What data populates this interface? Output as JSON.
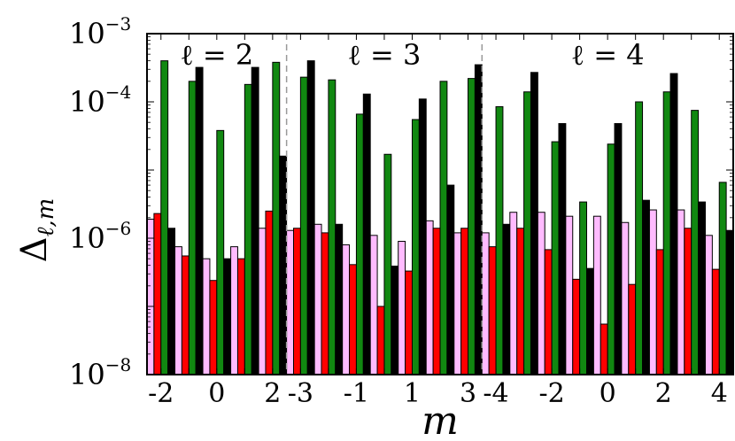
{
  "chart_data": {
    "type": "bar",
    "yscale": "log",
    "ylim": [
      1e-08,
      0.001
    ],
    "ylabel": "Δℓ,m",
    "xlabel": "m",
    "yticks": [
      {
        "value": 1e-08,
        "base": "10",
        "exp": "−8"
      },
      {
        "value": 1e-06,
        "base": "10",
        "exp": "−6"
      },
      {
        "value": 0.0001,
        "base": "10",
        "exp": "−4"
      },
      {
        "value": 0.001,
        "base": "10",
        "exp": "−3"
      }
    ],
    "legend": "none",
    "grid": false,
    "colors": {
      "s1": "#ffbbff",
      "s2": "#ff0000",
      "s3": "#118811",
      "s4": "#000000"
    },
    "panels": [
      {
        "label": "ℓ = 2",
        "m": [
          -2,
          -1,
          0,
          1,
          2
        ],
        "tick_labels": [
          "-2",
          "",
          "0",
          "",
          "2"
        ],
        "series": {
          "s1": [
            1.9e-06,
            7.5e-07,
            5e-07,
            7.5e-07,
            1.4e-06
          ],
          "s2": [
            2.3e-06,
            5.5e-07,
            2.4e-07,
            5e-07,
            2.5e-06
          ],
          "s3": [
            0.0004,
            0.0002,
            3.8e-05,
            0.00018,
            0.00038
          ],
          "s4": [
            1.4e-06,
            0.00032,
            5e-07,
            0.00032,
            1.6e-05
          ]
        }
      },
      {
        "label": "ℓ = 3",
        "m": [
          -3,
          -2,
          -1,
          0,
          1,
          2,
          3
        ],
        "tick_labels": [
          "-3",
          "",
          "-1",
          "",
          "1",
          "",
          "3"
        ],
        "series": {
          "s1": [
            1.3e-06,
            1.6e-06,
            8e-07,
            1.1e-06,
            9e-07,
            1.8e-06,
            1.2e-06
          ],
          "s2": [
            1.4e-06,
            1.2e-06,
            4.1e-07,
            1e-07,
            3.3e-07,
            1.4e-06,
            1.4e-06
          ],
          "s3": [
            0.00023,
            0.00021,
            6.6e-05,
            1.7e-05,
            5.5e-05,
            0.0002,
            0.00022
          ],
          "s4": [
            0.0004,
            1.6e-06,
            0.00013,
            3.9e-07,
            0.00011,
            6e-06,
            0.00035
          ]
        }
      },
      {
        "label": "ℓ = 4",
        "m": [
          -4,
          -3,
          -2,
          -1,
          0,
          1,
          2,
          3,
          4
        ],
        "tick_labels": [
          "-4",
          "",
          "-2",
          "",
          "0",
          "",
          "2",
          "",
          "4"
        ],
        "series": {
          "s1": [
            1.2e-06,
            2.4e-06,
            2.4e-06,
            2.1e-06,
            2.1e-06,
            1.7e-06,
            2.6e-06,
            2.6e-06,
            1.1e-06
          ],
          "s2": [
            7.5e-07,
            1.4e-06,
            6.8e-07,
            2.5e-07,
            5.5e-08,
            2.1e-07,
            6.8e-07,
            1.4e-06,
            3.5e-07
          ],
          "s3": [
            8.5e-05,
            0.00014,
            2.6e-05,
            3.4e-06,
            2.4e-05,
            0.0001,
            0.00014,
            7.5e-05,
            6.6e-06
          ],
          "s4": [
            1.6e-06,
            0.00027,
            4.8e-05,
            3.6e-07,
            4.8e-05,
            3.6e-06,
            0.00026,
            3.4e-06,
            1.3e-06
          ]
        }
      }
    ]
  }
}
